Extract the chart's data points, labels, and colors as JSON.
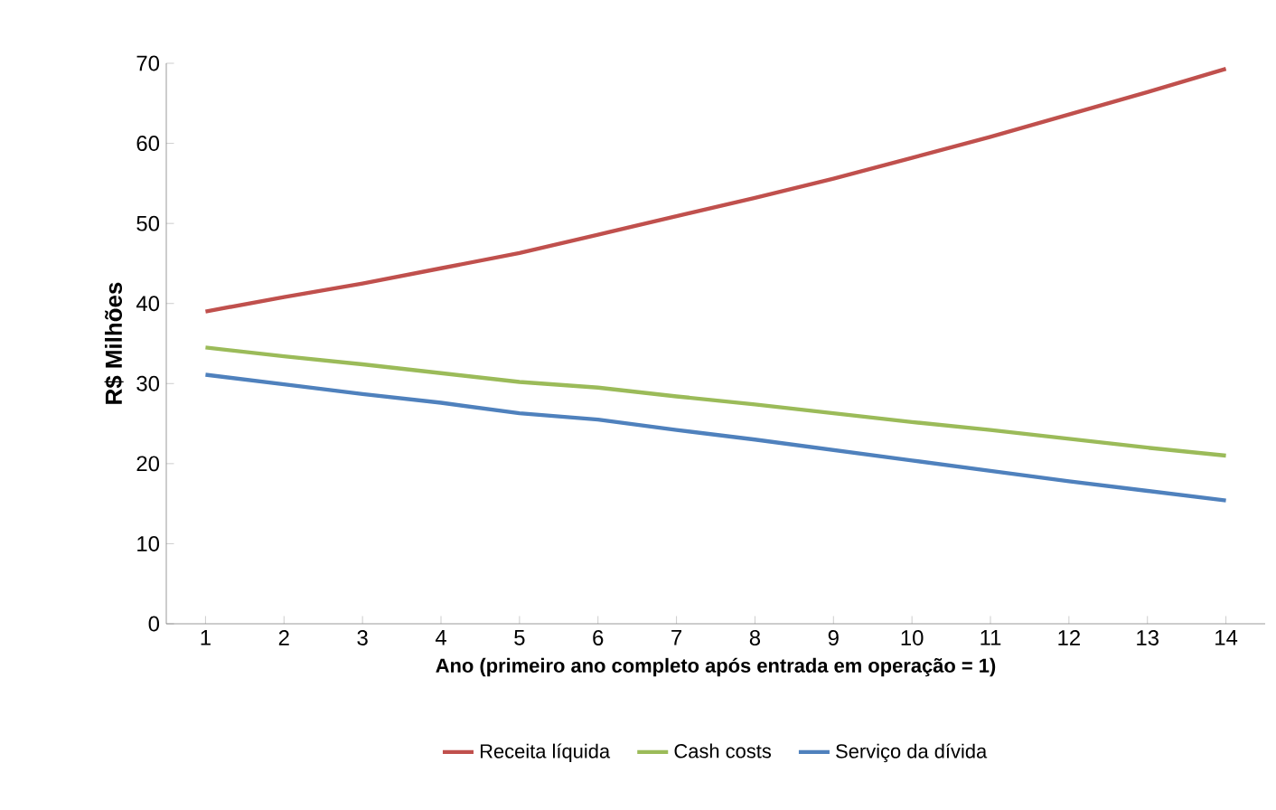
{
  "chart_data": {
    "type": "line",
    "xlabel": "Ano (primeiro ano completo após entrada em operação = 1)",
    "ylabel": "R$ Milhões",
    "categories": [
      "1",
      "2",
      "3",
      "4",
      "5",
      "6",
      "7",
      "8",
      "9",
      "10",
      "11",
      "12",
      "13",
      "14"
    ],
    "series": [
      {
        "name": "Receita líquida",
        "color": "#c0504d",
        "values": [
          39,
          40.8,
          42.5,
          44.4,
          46.3,
          48.6,
          50.9,
          53.2,
          55.6,
          58.2,
          60.8,
          63.6,
          66.4,
          69.3
        ]
      },
      {
        "name": "Cash costs",
        "color": "#9bbb59",
        "values": [
          34.5,
          33.4,
          32.4,
          31.3,
          30.2,
          29.5,
          28.4,
          27.4,
          26.3,
          25.2,
          24.2,
          23.1,
          22.0,
          21.0
        ]
      },
      {
        "name": "Serviço da dívida",
        "color": "#4f81bd",
        "values": [
          31.1,
          29.9,
          28.7,
          27.6,
          26.3,
          25.5,
          24.2,
          23.0,
          21.7,
          20.4,
          19.1,
          17.8,
          16.6,
          15.4
        ]
      }
    ],
    "ylim": [
      0,
      70
    ],
    "yticks": [
      0,
      10,
      20,
      30,
      40,
      50,
      60,
      70
    ],
    "legend": "bottom",
    "marker": "none",
    "line_style": "solid"
  }
}
